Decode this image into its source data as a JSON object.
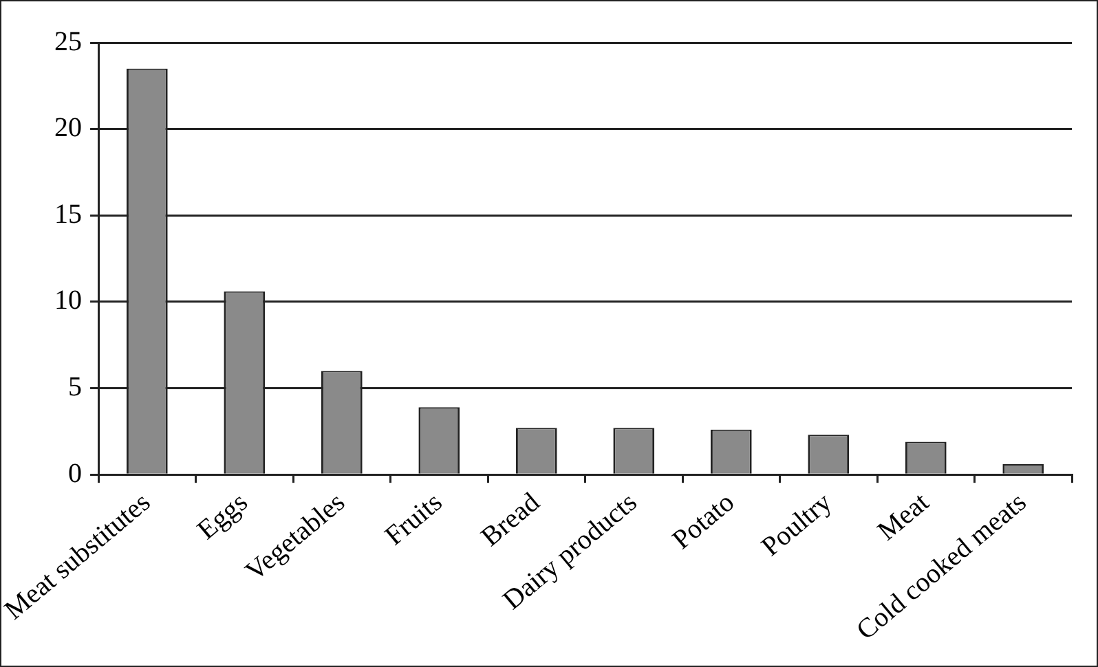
{
  "chart_data": {
    "type": "bar",
    "categories": [
      "Meat substitutes",
      "Eggs",
      "Vegetables",
      "Fruits",
      "Bread",
      "Dairy products",
      "Potato",
      "Poultry",
      "Meat",
      "Cold cooked meats"
    ],
    "values": [
      23.5,
      10.6,
      6.0,
      3.9,
      2.7,
      2.7,
      2.6,
      2.3,
      1.9,
      0.6
    ],
    "color": "#8a8a8a",
    "ylim": [
      0,
      25
    ],
    "yticks": [
      0,
      5,
      10,
      15,
      20,
      25
    ],
    "grid": "y",
    "legend": false
  }
}
